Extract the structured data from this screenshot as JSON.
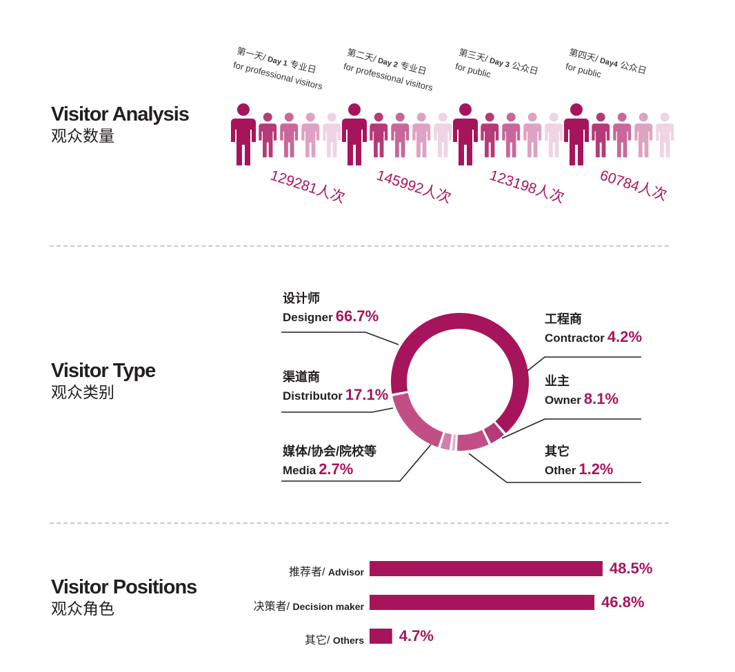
{
  "sections": {
    "analysis": {
      "en": "Visitor Analysis",
      "zh": "观众数量"
    },
    "type": {
      "en": "Visitor Type",
      "zh": "观众类别"
    },
    "positions": {
      "en": "Visitor Positions",
      "zh": "观众角色"
    }
  },
  "colors": {
    "accent": "#a6155c",
    "shades": [
      "#a6155c",
      "#b53a78",
      "#c9679a",
      "#dea2c2",
      "#f0d4e3"
    ]
  },
  "icon": "person-icon",
  "chart_data": [
    {
      "type": "pictograph",
      "title": "Visitor Analysis",
      "days": [
        {
          "line1": "第一天/ ",
          "day_en": "Day 1",
          "line1_tail": " 专业日",
          "line2": "for professional visitors",
          "count_text": "129281人次",
          "value": 129281
        },
        {
          "line1": "第二天/ ",
          "day_en": "Day 2",
          "line1_tail": " 专业日",
          "line2": "for professional visitors",
          "count_text": "145992人次",
          "value": 145992
        },
        {
          "line1": "第三天/ ",
          "day_en": "Day 3",
          "line1_tail": " 公众日",
          "line2": "for public",
          "count_text": "123198人次",
          "value": 123198
        },
        {
          "line1": "第四天/ ",
          "day_en": "Day4",
          "line1_tail": " 公众日",
          "line2": "for public",
          "count_text": "60784人次",
          "value": 60784
        }
      ]
    },
    {
      "type": "pie",
      "variant": "donut",
      "title": "Visitor Type",
      "segments": [
        {
          "zh": "设计师",
          "en": "Designer",
          "pct_text": "66.7%",
          "value": 66.7,
          "color": "#a6155c"
        },
        {
          "zh": "工程商",
          "en": "Contractor",
          "pct_text": "4.2%",
          "value": 4.2,
          "color": "#b53a78"
        },
        {
          "zh": "业主",
          "en": "Owner",
          "pct_text": "8.1%",
          "value": 8.1,
          "color": "#c24e86"
        },
        {
          "zh": "其它",
          "en": "Other",
          "pct_text": "1.2%",
          "value": 1.2,
          "color": "#e7a9c9"
        },
        {
          "zh": "媒体/协会/院校等",
          "en": "Media",
          "pct_text": "2.7%",
          "value": 2.7,
          "color": "#d27fab"
        },
        {
          "zh": "渠道商",
          "en": "Distributor",
          "pct_text": "17.1%",
          "value": 17.1,
          "color": "#c24e86"
        }
      ]
    },
    {
      "type": "bar",
      "orientation": "horizontal",
      "title": "Visitor Positions",
      "categories": [
        {
          "zh": "推荐者/ ",
          "en": "Advisor",
          "pct_text": "48.5%",
          "value": 48.5
        },
        {
          "zh": "决策者/ ",
          "en": "Decision maker",
          "pct_text": "46.8%",
          "value": 46.8
        },
        {
          "zh": "其它/ ",
          "en": "Others",
          "pct_text": "4.7%",
          "value": 4.7
        }
      ]
    }
  ]
}
